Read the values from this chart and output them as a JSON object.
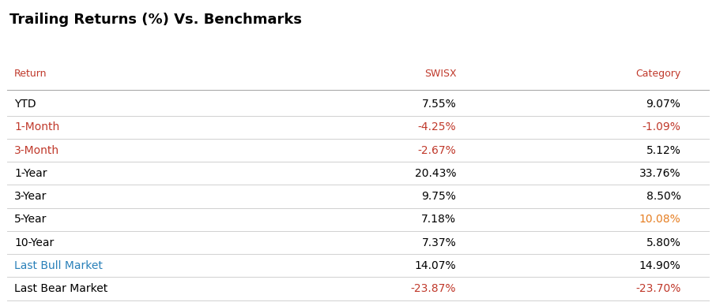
{
  "title": "Trailing Returns (%) Vs. Benchmarks",
  "title_color": "#000000",
  "title_fontsize": 13,
  "header_labels": [
    "Return",
    "SWISX",
    "Category"
  ],
  "header_color": "#c0392b",
  "rows": [
    {
      "label": "YTD",
      "label_color": "#000000",
      "swisx": "7.55%",
      "swisx_color": "#000000",
      "category": "9.07%",
      "category_color": "#000000"
    },
    {
      "label": "1-Month",
      "label_color": "#c0392b",
      "swisx": "-4.25%",
      "swisx_color": "#c0392b",
      "category": "-1.09%",
      "category_color": "#c0392b"
    },
    {
      "label": "3-Month",
      "label_color": "#c0392b",
      "swisx": "-2.67%",
      "swisx_color": "#c0392b",
      "category": "5.12%",
      "category_color": "#000000"
    },
    {
      "label": "1-Year",
      "label_color": "#000000",
      "swisx": "20.43%",
      "swisx_color": "#000000",
      "category": "33.76%",
      "category_color": "#000000"
    },
    {
      "label": "3-Year",
      "label_color": "#000000",
      "swisx": "9.75%",
      "swisx_color": "#000000",
      "category": "8.50%",
      "category_color": "#000000"
    },
    {
      "label": "5-Year",
      "label_color": "#000000",
      "swisx": "7.18%",
      "swisx_color": "#000000",
      "category": "10.08%",
      "category_color": "#e67e22"
    },
    {
      "label": "10-Year",
      "label_color": "#000000",
      "swisx": "7.37%",
      "swisx_color": "#000000",
      "category": "5.80%",
      "category_color": "#000000"
    },
    {
      "label": "Last Bull Market",
      "label_color": "#2980b9",
      "swisx": "14.07%",
      "swisx_color": "#000000",
      "category": "14.90%",
      "category_color": "#000000"
    },
    {
      "label": "Last Bear Market",
      "label_color": "#000000",
      "swisx": "-23.87%",
      "swisx_color": "#c0392b",
      "category": "-23.70%",
      "category_color": "#c0392b"
    }
  ],
  "col_x": {
    "label": 0.01,
    "swisx": 0.64,
    "category": 0.96
  },
  "header_fontsize": 9,
  "row_fontsize": 10,
  "line_color": "#d0d0d0",
  "background_color": "#ffffff",
  "header_line_color": "#aaaaaa"
}
